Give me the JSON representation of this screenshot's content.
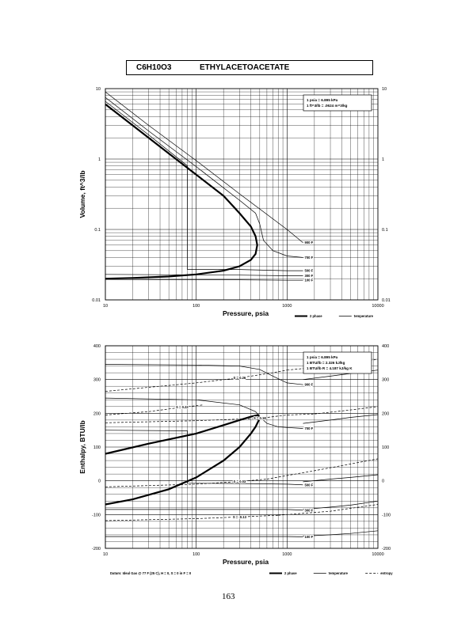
{
  "header": {
    "formula": "C6H10O3",
    "name": "ETHYLACETOACETATE"
  },
  "page_number": "163",
  "chart_data": [
    {
      "type": "line",
      "xlabel": "Pressure,  psia",
      "ylabel": "Volume, ft^3/lb",
      "x_scale": "log",
      "y_scale": "log",
      "xlim": [
        10,
        10000
      ],
      "ylim": [
        0.01,
        10
      ],
      "x_ticks": [
        "10",
        "100",
        "1000",
        "10000"
      ],
      "y_ticks": [
        "10",
        "1",
        "0.1",
        "0.01"
      ],
      "y_ticks_right": [
        "10",
        "1",
        "0.1",
        "0.01"
      ],
      "grid": true,
      "conversions": [
        "1 psia = 6.895 kPa",
        "1 ft^3/lb = .0624 m^3/kg"
      ],
      "legend": [
        {
          "label": "2 phase",
          "style": "thick"
        },
        {
          "label": "temperature",
          "style": "thin"
        }
      ],
      "series": [
        {
          "name": "2 phase",
          "style": "thick",
          "points": [
            [
              10,
              6.0
            ],
            [
              20,
              3.0
            ],
            [
              50,
              1.2
            ],
            [
              100,
              0.6
            ],
            [
              200,
              0.3
            ],
            [
              300,
              0.17
            ],
            [
              400,
              0.11
            ],
            [
              450,
              0.08
            ],
            [
              470,
              0.06
            ],
            [
              450,
              0.045
            ],
            [
              400,
              0.037
            ],
            [
              300,
              0.03
            ],
            [
              200,
              0.026
            ],
            [
              100,
              0.023
            ],
            [
              50,
              0.0215
            ],
            [
              20,
              0.0205
            ],
            [
              10,
              0.02
            ]
          ]
        },
        {
          "name": "900 F",
          "style": "thin",
          "points": [
            [
              10,
              9.0
            ],
            [
              30,
              3.0
            ],
            [
              100,
              0.95
            ],
            [
              300,
              0.32
            ],
            [
              1000,
              0.1
            ],
            [
              1500,
              0.065
            ]
          ]
        },
        {
          "name": "700 F",
          "style": "thin",
          "points": [
            [
              10,
              7.5
            ],
            [
              30,
              2.5
            ],
            [
              100,
              0.78
            ],
            [
              300,
              0.26
            ],
            [
              450,
              0.17
            ],
            [
              500,
              0.12
            ],
            [
              550,
              0.07
            ],
            [
              700,
              0.05
            ],
            [
              1000,
              0.042
            ],
            [
              1500,
              0.04
            ]
          ]
        },
        {
          "name": "500 F",
          "style": "thin",
          "points": [
            [
              10,
              6.6
            ],
            [
              30,
              2.2
            ],
            [
              80,
              0.8
            ],
            [
              80,
              0.027
            ],
            [
              300,
              0.027
            ],
            [
              1000,
              0.026
            ],
            [
              1500,
              0.026
            ]
          ]
        },
        {
          "name": "300 F",
          "style": "thin",
          "points": [
            [
              10,
              0.023
            ],
            [
              300,
              0.0225
            ],
            [
              1000,
              0.022
            ],
            [
              1500,
              0.022
            ]
          ]
        },
        {
          "name": "100 F",
          "style": "thin",
          "points": [
            [
              10,
              0.0195
            ],
            [
              300,
              0.0193
            ],
            [
              1000,
              0.019
            ],
            [
              1500,
              0.019
            ]
          ]
        }
      ]
    },
    {
      "type": "line",
      "xlabel": "Pressure,  psia",
      "ylabel": "Enthalpy, BTU/lb",
      "x_scale": "log",
      "xlim": [
        10,
        10000
      ],
      "ylim": [
        -200,
        400
      ],
      "x_ticks": [
        "10",
        "100",
        "1000",
        "10000"
      ],
      "y_ticks": [
        "400",
        "300",
        "200",
        "100",
        "0",
        "-100",
        "-200"
      ],
      "y_ticks_right": [
        "400",
        "300",
        "200",
        "100",
        "0",
        "-100",
        "-200"
      ],
      "grid": true,
      "conversions": [
        "1 psia = 6.895 kPa",
        "1 BTU/lb = 2.326 kJ/kg",
        "1 BTU/lb R = 4.187 kJ/kg K"
      ],
      "footnote": "Datum: Ideal Gas @ 77 F (25 C), H = 0, S = 0 in F = 0",
      "legend": [
        {
          "label": "2 phase",
          "style": "thick"
        },
        {
          "label": "temperature",
          "style": "thin"
        },
        {
          "label": "entropy",
          "style": "dashed"
        }
      ],
      "series": [
        {
          "name": "2 phase",
          "style": "thick",
          "points": [
            [
              10,
              80
            ],
            [
              30,
              110
            ],
            [
              100,
              140
            ],
            [
              200,
              165
            ],
            [
              300,
              180
            ],
            [
              400,
              190
            ],
            [
              480,
              195
            ],
            [
              500,
              185
            ],
            [
              450,
              160
            ],
            [
              400,
              140
            ],
            [
              300,
              100
            ],
            [
              200,
              60
            ],
            [
              100,
              10
            ],
            [
              50,
              -25
            ],
            [
              20,
              -55
            ],
            [
              10,
              -70
            ]
          ]
        },
        {
          "name": "900 F",
          "style": "thin",
          "points": [
            [
              10,
              345
            ],
            [
              100,
              343
            ],
            [
              300,
              340
            ],
            [
              500,
              330
            ],
            [
              700,
              310
            ],
            [
              1000,
              290
            ],
            [
              1500,
              285
            ]
          ]
        },
        {
          "name": "700 F",
          "style": "thin",
          "points": [
            [
              10,
              245
            ],
            [
              100,
              240
            ],
            [
              300,
              225
            ],
            [
              450,
              205
            ],
            [
              500,
              190
            ],
            [
              600,
              170
            ],
            [
              800,
              160
            ],
            [
              1000,
              158
            ],
            [
              1500,
              155
            ]
          ]
        },
        {
          "name": "500 F",
          "style": "thin",
          "points": [
            [
              10,
              150
            ],
            [
              80,
              148
            ],
            [
              80,
              -7
            ],
            [
              300,
              -8
            ],
            [
              1000,
              -10
            ],
            [
              1500,
              -12
            ]
          ]
        },
        {
          "name": "300 F",
          "style": "thin",
          "points": [
            [
              10,
              -85
            ],
            [
              300,
              -85
            ],
            [
              1000,
              -85
            ],
            [
              1500,
              -87
            ]
          ]
        },
        {
          "name": "100 F",
          "style": "thin",
          "points": [
            [
              10,
              -165
            ],
            [
              300,
              -165
            ],
            [
              1000,
              -165
            ],
            [
              1500,
              -166
            ]
          ]
        },
        {
          "name": "S = 0.26",
          "style": "dashed",
          "points": [
            [
              10,
              265
            ],
            [
              100,
              290
            ],
            [
              300,
              305
            ],
            [
              700,
              320
            ],
            [
              1000,
              328
            ]
          ]
        },
        {
          "name": "S = 0.22",
          "style": "dashed",
          "points": [
            [
              10,
              195
            ],
            [
              30,
              205
            ],
            [
              70,
              218
            ],
            [
              120,
              225
            ]
          ]
        },
        {
          "name": "S = 0.18",
          "style": "dashed",
          "points": [
            [
              10,
              172
            ],
            [
              100,
              178
            ],
            [
              500,
              185
            ],
            [
              1000,
              195
            ],
            [
              2000,
              198
            ]
          ]
        },
        {
          "name": "S = 0.03",
          "style": "dashed",
          "points": [
            [
              10,
              -18
            ],
            [
              100,
              -10
            ],
            [
              300,
              -2
            ],
            [
              600,
              5
            ]
          ]
        },
        {
          "name": "S = -0.13",
          "style": "dashed",
          "points": [
            [
              10,
              -118
            ],
            [
              100,
              -112
            ],
            [
              300,
              -107
            ],
            [
              800,
              -102
            ]
          ]
        }
      ],
      "extra_series": [
        {
          "style": "thin",
          "points": [
            [
              1500,
              300
            ],
            [
              3000,
              310
            ],
            [
              5000,
              318
            ],
            [
              10000,
              328
            ]
          ]
        },
        {
          "style": "thin",
          "points": [
            [
              1500,
              170
            ],
            [
              3000,
              180
            ],
            [
              5000,
              188
            ],
            [
              10000,
              196
            ]
          ]
        },
        {
          "style": "thin",
          "points": [
            [
              1500,
              -3
            ],
            [
              3000,
              5
            ],
            [
              5000,
              10
            ],
            [
              10000,
              18
            ]
          ]
        },
        {
          "style": "thin",
          "points": [
            [
              1500,
              -85
            ],
            [
              3000,
              -78
            ],
            [
              5000,
              -72
            ],
            [
              10000,
              -60
            ]
          ]
        },
        {
          "style": "thin",
          "points": [
            [
              1500,
              -164
            ],
            [
              3000,
              -160
            ],
            [
              5000,
              -156
            ],
            [
              10000,
              -148
            ]
          ]
        },
        {
          "style": "dashed",
          "points": [
            [
              1000,
              328
            ],
            [
              3000,
              340
            ],
            [
              10000,
              360
            ]
          ]
        },
        {
          "style": "dashed",
          "points": [
            [
              2000,
              198
            ],
            [
              5000,
              210
            ],
            [
              10000,
              220
            ]
          ]
        },
        {
          "style": "dashed",
          "points": [
            [
              600,
              5
            ],
            [
              2000,
              30
            ],
            [
              10000,
              65
            ]
          ]
        },
        {
          "style": "dashed",
          "points": [
            [
              800,
              -102
            ],
            [
              3000,
              -90
            ],
            [
              10000,
              -70
            ]
          ]
        }
      ]
    }
  ]
}
